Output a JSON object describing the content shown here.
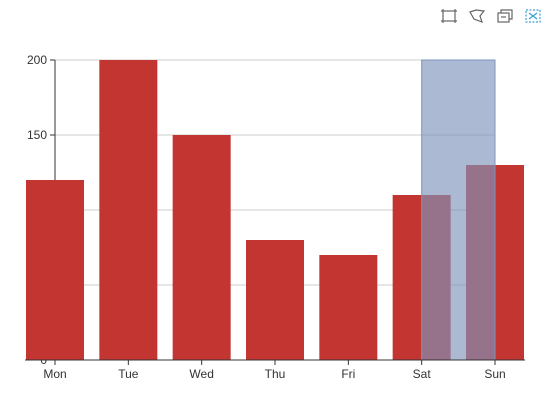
{
  "toolbox": {
    "tools": [
      {
        "name": "rect-select-icon",
        "title": "Rectangle selection"
      },
      {
        "name": "lasso-select-icon",
        "title": "Lasso selection"
      },
      {
        "name": "keep-selection-icon",
        "title": "Keep selections"
      },
      {
        "name": "clear-selection-icon",
        "title": "Clear selections"
      }
    ],
    "active_color": "#3aa0d8",
    "icon_color": "#666666"
  },
  "colors": {
    "bar": "#c23531",
    "brush_fill": "#7f93bb",
    "brush_stroke": "#7f93bb",
    "grid": "#cccccc",
    "axis": "#333333"
  },
  "chart_data": {
    "type": "bar",
    "categories": [
      "Mon",
      "Tue",
      "Wed",
      "Thu",
      "Fri",
      "Sat",
      "Sun"
    ],
    "values": [
      120,
      200,
      150,
      80,
      70,
      110,
      130
    ],
    "ylim": [
      0,
      200
    ],
    "yticks": [
      0,
      50,
      100,
      150,
      200
    ],
    "ytick_labels": [
      "0",
      "",
      "",
      "150",
      "200"
    ],
    "grid": true,
    "brush": {
      "from_category": "Sat",
      "to_category": "Sun"
    }
  }
}
